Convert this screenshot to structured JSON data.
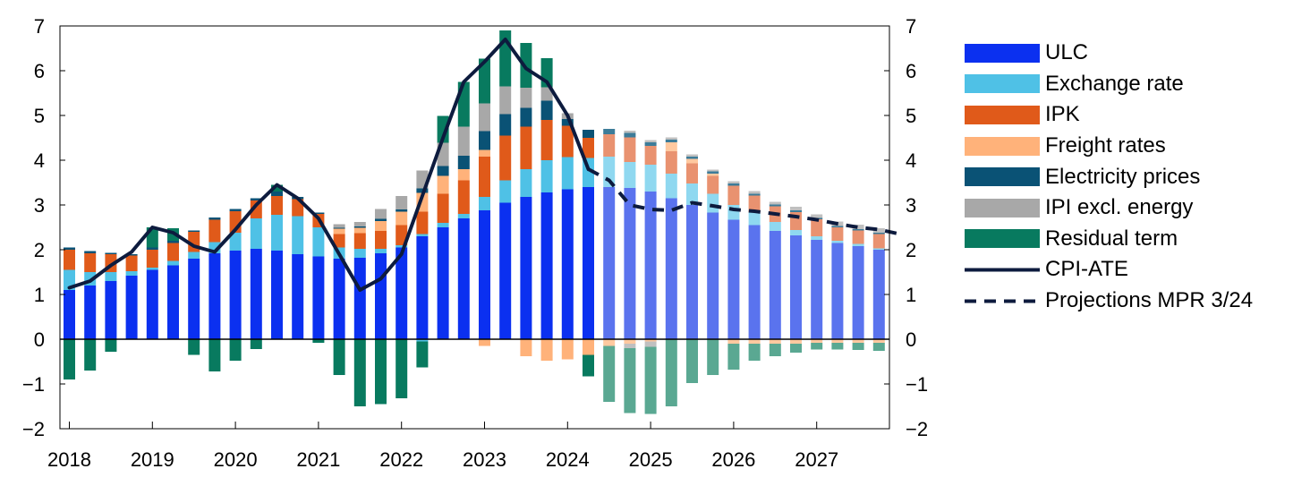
{
  "chart_data": {
    "type": "bar",
    "stacked": true,
    "x_start_quarter": "2018Q1",
    "projection_start_index": 26,
    "ylim": [
      -2,
      7
    ],
    "yticks": [
      -2,
      -1,
      0,
      1,
      2,
      3,
      4,
      5,
      6,
      7
    ],
    "ytick_labels": [
      "−2",
      "−1",
      "0",
      "1",
      "2",
      "3",
      "4",
      "5",
      "6",
      "7"
    ],
    "xtick_labels": [
      "2018",
      "2019",
      "2020",
      "2021",
      "2022",
      "2023",
      "2024",
      "2025",
      "2026",
      "2027"
    ],
    "series": [
      {
        "name": "ULC",
        "color": "#0b30f0",
        "projection_color": "#5a73ee",
        "values": [
          1.1,
          1.2,
          1.3,
          1.42,
          1.55,
          1.65,
          1.8,
          1.92,
          1.98,
          2.02,
          1.98,
          1.9,
          1.85,
          1.8,
          1.82,
          1.92,
          2.05,
          2.3,
          2.5,
          2.7,
          2.88,
          3.05,
          3.18,
          3.28,
          3.35,
          3.4,
          3.4,
          3.38,
          3.3,
          3.15,
          3.0,
          2.83,
          2.67,
          2.55,
          2.42,
          2.32,
          2.22,
          2.15,
          2.08,
          2.0
        ]
      },
      {
        "name": "Exchange rate",
        "color": "#4fc1e6",
        "projection_color": "#8fd8f0",
        "values": [
          0.45,
          0.3,
          0.2,
          0.1,
          0.05,
          0.1,
          0.15,
          0.25,
          0.4,
          0.68,
          0.8,
          0.85,
          0.65,
          0.25,
          0.2,
          0.1,
          0.05,
          0.05,
          0.1,
          0.1,
          0.3,
          0.5,
          0.62,
          0.72,
          0.72,
          0.65,
          0.68,
          0.58,
          0.6,
          0.55,
          0.48,
          0.42,
          0.33,
          0.28,
          0.2,
          0.12,
          0.08,
          0.05,
          0.05,
          0.03
        ]
      },
      {
        "name": "IPK",
        "color": "#e05a1a",
        "projection_color": "#e99270",
        "values": [
          0.45,
          0.42,
          0.4,
          0.35,
          0.4,
          0.4,
          0.45,
          0.5,
          0.48,
          0.4,
          0.42,
          0.38,
          0.3,
          0.3,
          0.35,
          0.4,
          0.45,
          0.5,
          0.65,
          0.75,
          0.9,
          1.0,
          0.95,
          0.9,
          0.7,
          0.45,
          0.5,
          0.55,
          0.42,
          0.5,
          0.45,
          0.4,
          0.43,
          0.38,
          0.35,
          0.4,
          0.38,
          0.3,
          0.3,
          0.32
        ]
      },
      {
        "name": "Freight rates",
        "color": "#ffb27a",
        "projection_color": "#ffc9a0",
        "values": [
          0,
          0,
          0,
          0,
          0,
          0,
          0,
          0,
          0,
          0,
          0,
          0,
          0,
          0.12,
          0.12,
          0.22,
          0.3,
          0.42,
          0.4,
          0.25,
          0.15,
          0,
          0,
          0,
          0,
          0,
          0,
          0,
          0,
          0.2,
          0.1,
          0.05,
          0,
          0,
          0,
          0,
          0,
          0,
          0,
          0
        ]
      },
      {
        "name": "Electricity prices",
        "color": "#0a5275",
        "projection_color": "#3d7c99",
        "values": [
          0.05,
          0.05,
          0.03,
          0.03,
          0.05,
          0.05,
          0.03,
          0.05,
          0.05,
          0.05,
          0.1,
          0.05,
          0.03,
          0.02,
          0.03,
          0.05,
          0.05,
          0.1,
          0.22,
          0.3,
          0.42,
          0.48,
          0.42,
          0.43,
          0.15,
          0.18,
          0.12,
          0.1,
          0.08,
          0.06,
          0.05,
          0.05,
          0.05,
          0.04,
          0.04,
          0.04,
          0.03,
          0.03,
          0.03,
          0.03
        ]
      },
      {
        "name": "IPI excl. energy",
        "color": "#a8a8a8",
        "projection_color": "#c0c0c0",
        "values": [
          0,
          0,
          0,
          0,
          0,
          0,
          0,
          0,
          0,
          0,
          0,
          0,
          0,
          0.08,
          0.1,
          0.22,
          0.3,
          0.4,
          0.52,
          0.65,
          0.62,
          0.62,
          0.45,
          0.3,
          0.13,
          0,
          0,
          0.05,
          0.05,
          0.05,
          0.05,
          0.04,
          0.05,
          0.06,
          0.06,
          0.08,
          0.08,
          0.1,
          0.1,
          0.1
        ]
      },
      {
        "name": "Residual term",
        "color": "#087a5f",
        "projection_color": "#5aa892",
        "values": [
          0,
          0,
          0,
          0,
          0.45,
          0.28,
          0,
          0,
          0,
          0,
          0.15,
          0,
          0,
          0,
          0,
          0,
          0,
          0,
          0.6,
          1.0,
          1.0,
          1.25,
          1.0,
          0.65,
          0,
          0,
          0,
          0,
          0,
          0,
          0,
          0,
          0,
          0,
          0,
          0,
          0,
          0,
          0,
          0
        ]
      }
    ],
    "negative_series": [
      {
        "name": "ULC",
        "values": [
          0,
          0,
          0,
          0,
          0,
          0,
          0,
          0,
          0,
          0,
          0,
          0,
          0,
          0,
          0,
          0,
          0,
          0,
          0,
          0,
          0,
          0,
          0,
          0,
          0,
          0,
          0,
          0,
          0,
          0,
          0,
          0,
          0,
          0,
          0,
          0,
          0,
          0,
          0,
          0
        ]
      },
      {
        "name": "Exchange rate",
        "values": [
          0,
          0,
          0,
          0,
          0,
          0,
          0,
          0,
          0,
          0,
          0,
          0,
          0,
          0,
          0,
          0,
          0,
          -0.05,
          0,
          0,
          0,
          0,
          0,
          0,
          0,
          0,
          0,
          0,
          0,
          0,
          0,
          0,
          0,
          0,
          0,
          0,
          0,
          0,
          0,
          0
        ]
      },
      {
        "name": "Freight rates",
        "values": [
          0,
          0,
          0,
          0,
          0,
          0,
          0,
          0,
          0,
          0,
          0,
          0,
          0,
          0,
          0,
          0,
          0,
          0,
          0,
          0,
          -0.15,
          0,
          -0.38,
          -0.48,
          -0.45,
          -0.35,
          -0.15,
          -0.1,
          -0.05,
          0,
          0,
          0,
          -0.1,
          -0.1,
          -0.1,
          -0.1,
          -0.08,
          -0.08,
          -0.08,
          -0.08
        ]
      },
      {
        "name": "IPI excl. energy",
        "values": [
          0,
          0,
          0,
          0,
          0,
          0,
          0,
          0,
          0,
          0,
          0,
          0,
          0,
          0,
          0,
          0,
          0,
          0,
          0,
          0,
          0,
          0,
          0,
          0,
          0,
          0,
          0,
          -0.1,
          -0.12,
          0,
          0,
          0,
          0,
          0,
          0,
          0,
          0,
          0,
          0,
          0
        ]
      },
      {
        "name": "Residual term",
        "values": [
          -0.9,
          -0.7,
          -0.28,
          0,
          0,
          0,
          -0.35,
          -0.72,
          -0.48,
          -0.22,
          0,
          0,
          -0.08,
          -0.8,
          -1.5,
          -1.45,
          -1.32,
          -0.58,
          0,
          0,
          0,
          0,
          0,
          0,
          0,
          -0.48,
          -1.25,
          -1.45,
          -1.5,
          -1.5,
          -0.98,
          -0.8,
          -0.58,
          -0.38,
          -0.28,
          -0.2,
          -0.15,
          -0.15,
          -0.16,
          -0.18
        ]
      }
    ],
    "line": {
      "name": "CPI-ATE",
      "values": [
        1.15,
        1.3,
        1.65,
        1.95,
        2.5,
        2.38,
        2.08,
        1.95,
        2.45,
        3.0,
        3.45,
        3.15,
        2.7,
        1.9,
        1.1,
        1.35,
        1.9,
        3.2,
        4.5,
        5.75,
        6.2,
        6.7,
        6.05,
        5.75,
        5.0,
        3.8
      ]
    },
    "projection_line": {
      "name": "Projections MPR 3/24",
      "start_index": 25,
      "values": [
        3.8,
        3.55,
        3.0,
        2.9,
        2.88,
        3.05,
        2.98,
        2.9,
        2.86,
        2.8,
        2.74,
        2.67,
        2.58,
        2.5,
        2.45,
        2.35
      ]
    },
    "legend": {
      "items": [
        {
          "label": "ULC",
          "kind": "bar",
          "color": "#0b30f0"
        },
        {
          "label": "Exchange rate",
          "kind": "bar",
          "color": "#4fc1e6"
        },
        {
          "label": "IPK",
          "kind": "bar",
          "color": "#e05a1a"
        },
        {
          "label": "Freight rates",
          "kind": "bar",
          "color": "#ffb27a"
        },
        {
          "label": "Electricity prices",
          "kind": "bar",
          "color": "#0a5275"
        },
        {
          "label": "IPI excl. energy",
          "kind": "bar",
          "color": "#a8a8a8"
        },
        {
          "label": "Residual term",
          "kind": "bar",
          "color": "#087a5f"
        },
        {
          "label": "CPI-ATE",
          "kind": "line",
          "color": "#0d1b3e"
        },
        {
          "label": "Projections MPR 3/24",
          "kind": "dashed",
          "color": "#0d1b3e"
        }
      ],
      "position": "right"
    }
  }
}
